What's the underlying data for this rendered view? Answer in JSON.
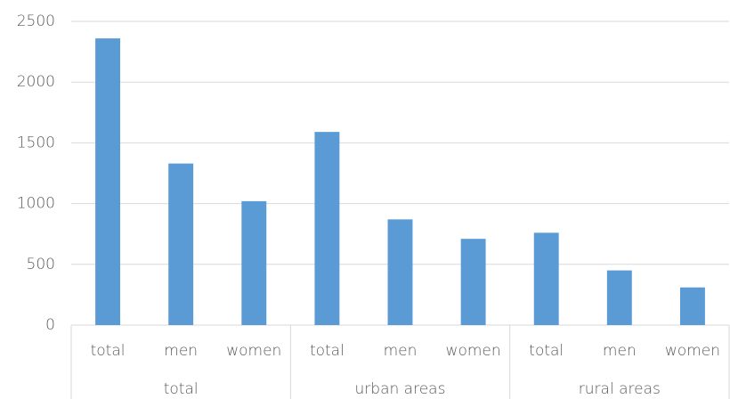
{
  "chart_data": {
    "type": "bar",
    "groups": [
      {
        "name": "total",
        "categories": [
          "total",
          "men",
          "women"
        ]
      },
      {
        "name": "urban areas",
        "categories": [
          "total",
          "men",
          "women"
        ]
      },
      {
        "name": "rural areas",
        "categories": [
          "total",
          "men",
          "women"
        ]
      }
    ],
    "values": [
      2360,
      1330,
      1020,
      1590,
      870,
      710,
      760,
      450,
      310
    ],
    "color": "#5b9bd5",
    "ylim": [
      0,
      2500
    ],
    "yticks": [
      0,
      500,
      1000,
      1500,
      2000,
      2500
    ],
    "grid": true
  }
}
